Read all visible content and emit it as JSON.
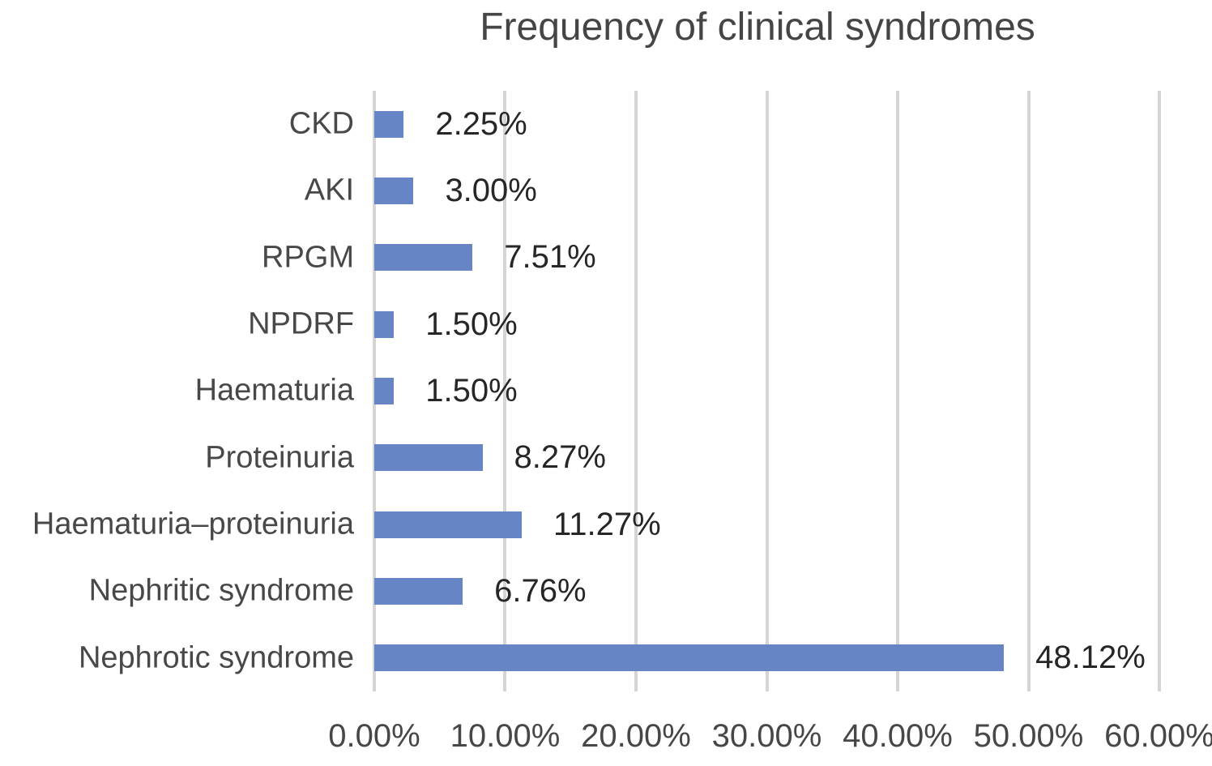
{
  "chart_data": {
    "type": "bar",
    "orientation": "horizontal",
    "title": "Frequency of clinical syndromes",
    "categories": [
      "CKD",
      "AKI",
      "RPGM",
      "NPDRF",
      "Haematuria",
      "Proteinuria",
      "Haematuria–proteinuria",
      "Nephritic syndrome",
      "Nephrotic syndrome"
    ],
    "values": [
      2.25,
      3.0,
      7.51,
      1.5,
      1.5,
      8.27,
      11.27,
      6.76,
      48.12
    ],
    "value_labels": [
      "2.25%",
      "3.00%",
      "7.51%",
      "1.50%",
      "1.50%",
      "8.27%",
      "11.27%",
      "6.76%",
      "48.12%"
    ],
    "xlabel": "",
    "ylabel": "",
    "xlim": [
      0,
      60
    ],
    "x_tick_labels": [
      "0.00%",
      "10.00%",
      "20.00%",
      "30.00%",
      "40.00%",
      "50.00%",
      "60.00%"
    ],
    "x_tick_values": [
      0,
      10,
      20,
      30,
      40,
      50,
      60
    ],
    "grid": "vertical",
    "legend": "none",
    "bar_color": "#6784c4",
    "gridline_color": "#d5d5d5",
    "title_color": "#454545",
    "label_color": "#484848",
    "value_color": "#262626"
  }
}
